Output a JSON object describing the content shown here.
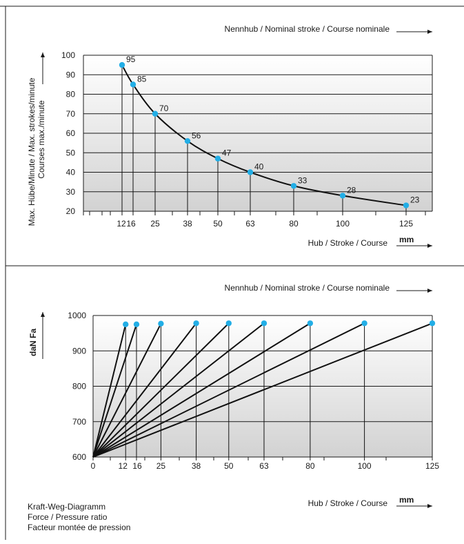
{
  "top_chart": {
    "header_label": "Nennhub  /  Nominal stroke  /  Course nominale",
    "ylabel_line1": "Max. Hübe/Minute / Max. strokes/minute",
    "ylabel_line2": "Courses max./minute",
    "xlabel": "Hub  /  Stroke  /  Course",
    "xunit": "mm"
  },
  "bottom_chart": {
    "header_label": "Nennhub  /  Nominal stroke  /  Course nominale",
    "ylabel": "daN  Fa",
    "xlabel": "Hub  /  Stroke  /  Course",
    "xunit": "mm",
    "caption": [
      "Kraft-Weg-Diagramm",
      "Force / Pressure ratio",
      "Facteur montée de pression"
    ]
  },
  "colors": {
    "point": "#22aee6",
    "line": "#111111",
    "grid": "#1a1a1a",
    "gradient_top": "#ffffff",
    "gradient_bottom": "#d2d2d2"
  },
  "chart_data": [
    {
      "type": "line",
      "x": [
        12,
        16,
        25,
        38,
        50,
        63,
        80,
        100,
        125
      ],
      "x_tick_labels": [
        "12",
        "16",
        "25",
        "38",
        "50",
        "63",
        "80",
        "100",
        "125"
      ],
      "y": [
        95,
        85,
        70,
        56,
        47,
        40,
        33,
        28,
        23
      ],
      "data_labels": [
        "95",
        "85",
        "70",
        "56",
        "47",
        "40",
        "33",
        "28",
        "23"
      ],
      "y_ticks": [
        "20",
        "30",
        "40",
        "50",
        "60",
        "70",
        "80",
        "90",
        "100"
      ],
      "ylim": [
        20,
        100
      ],
      "grid": true
    },
    {
      "type": "line",
      "x_ticks": [
        0,
        12,
        16,
        25,
        38,
        50,
        63,
        80,
        100,
        125
      ],
      "x_tick_labels": [
        "0",
        "12",
        "16",
        "25",
        "38",
        "50",
        "63",
        "80",
        "100",
        "125"
      ],
      "y_ticks": [
        "600",
        "700",
        "800",
        "900",
        "1000"
      ],
      "ylim": [
        600,
        1000
      ],
      "origin": [
        0,
        600
      ],
      "series": [
        {
          "end": [
            12,
            975
          ]
        },
        {
          "end": [
            16,
            975
          ]
        },
        {
          "end": [
            25,
            977
          ]
        },
        {
          "end": [
            38,
            978
          ]
        },
        {
          "end": [
            50,
            978
          ]
        },
        {
          "end": [
            63,
            978
          ]
        },
        {
          "end": [
            80,
            978
          ]
        },
        {
          "end": [
            100,
            978
          ]
        },
        {
          "end": [
            125,
            978
          ]
        }
      ],
      "grid": true
    }
  ]
}
